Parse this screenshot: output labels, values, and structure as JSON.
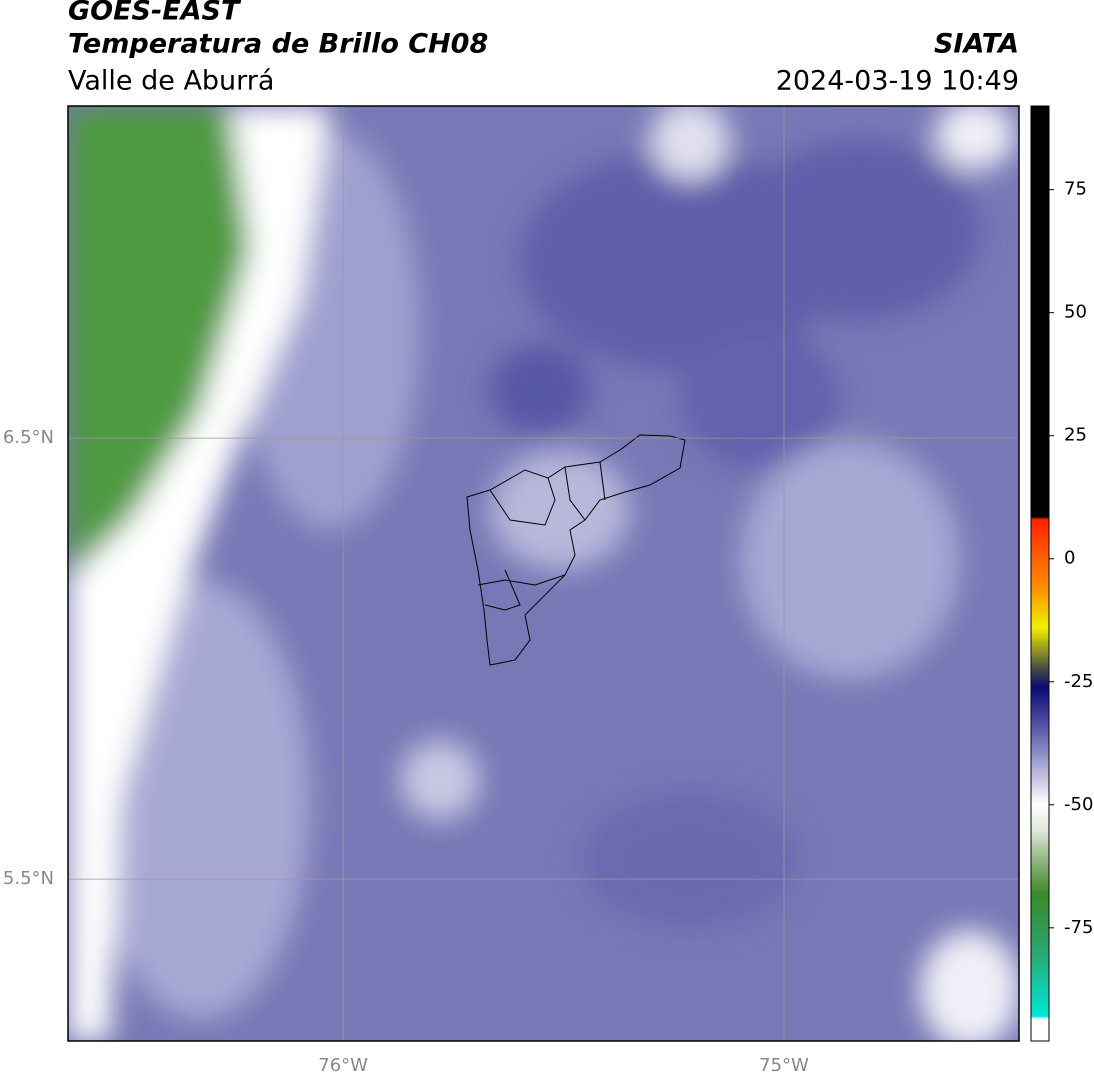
{
  "header": {
    "title": "GOES-EAST",
    "subtitle": "Temperatura de Brillo CH08",
    "region": "Valle de Aburrá",
    "source": "SIATA",
    "datetime": "2024-03-19 10:49"
  },
  "map": {
    "xlim": [
      -76.624,
      -74.467
    ],
    "ylim": [
      5.133,
      7.253
    ],
    "xticks": [
      {
        "value": -76,
        "label": "76°W"
      },
      {
        "value": -75,
        "label": "75°W"
      }
    ],
    "yticks": [
      {
        "value": 6.5,
        "label": "6.5°N"
      },
      {
        "value": 5.5,
        "label": "5.5°N"
      }
    ]
  },
  "colorbar": {
    "lim": [
      -98,
      92
    ],
    "ticks": [
      75,
      50,
      25,
      0,
      -25,
      -50,
      -75
    ],
    "stops": [
      {
        "value": -98,
        "color": "#ffffff"
      },
      {
        "value": -93.5,
        "color": "#ffffff"
      },
      {
        "value": -93,
        "color": "#00e8d8"
      },
      {
        "value": -80,
        "color": "#2aa870"
      },
      {
        "value": -68,
        "color": "#3a8a28"
      },
      {
        "value": -62,
        "color": "#8ab078"
      },
      {
        "value": -55,
        "color": "#e0e8dc"
      },
      {
        "value": -50,
        "color": "#ffffff"
      },
      {
        "value": -42,
        "color": "#a8a8d4"
      },
      {
        "value": -33,
        "color": "#4a4aa0"
      },
      {
        "value": -26,
        "color": "#0a0a70"
      },
      {
        "value": -22,
        "color": "#505040"
      },
      {
        "value": -14,
        "color": "#f0f000"
      },
      {
        "value": -6,
        "color": "#ff9000"
      },
      {
        "value": 8,
        "color": "#ff2000"
      },
      {
        "value": 8.5,
        "color": "#000000"
      },
      {
        "value": 92,
        "color": "#000000"
      }
    ]
  }
}
